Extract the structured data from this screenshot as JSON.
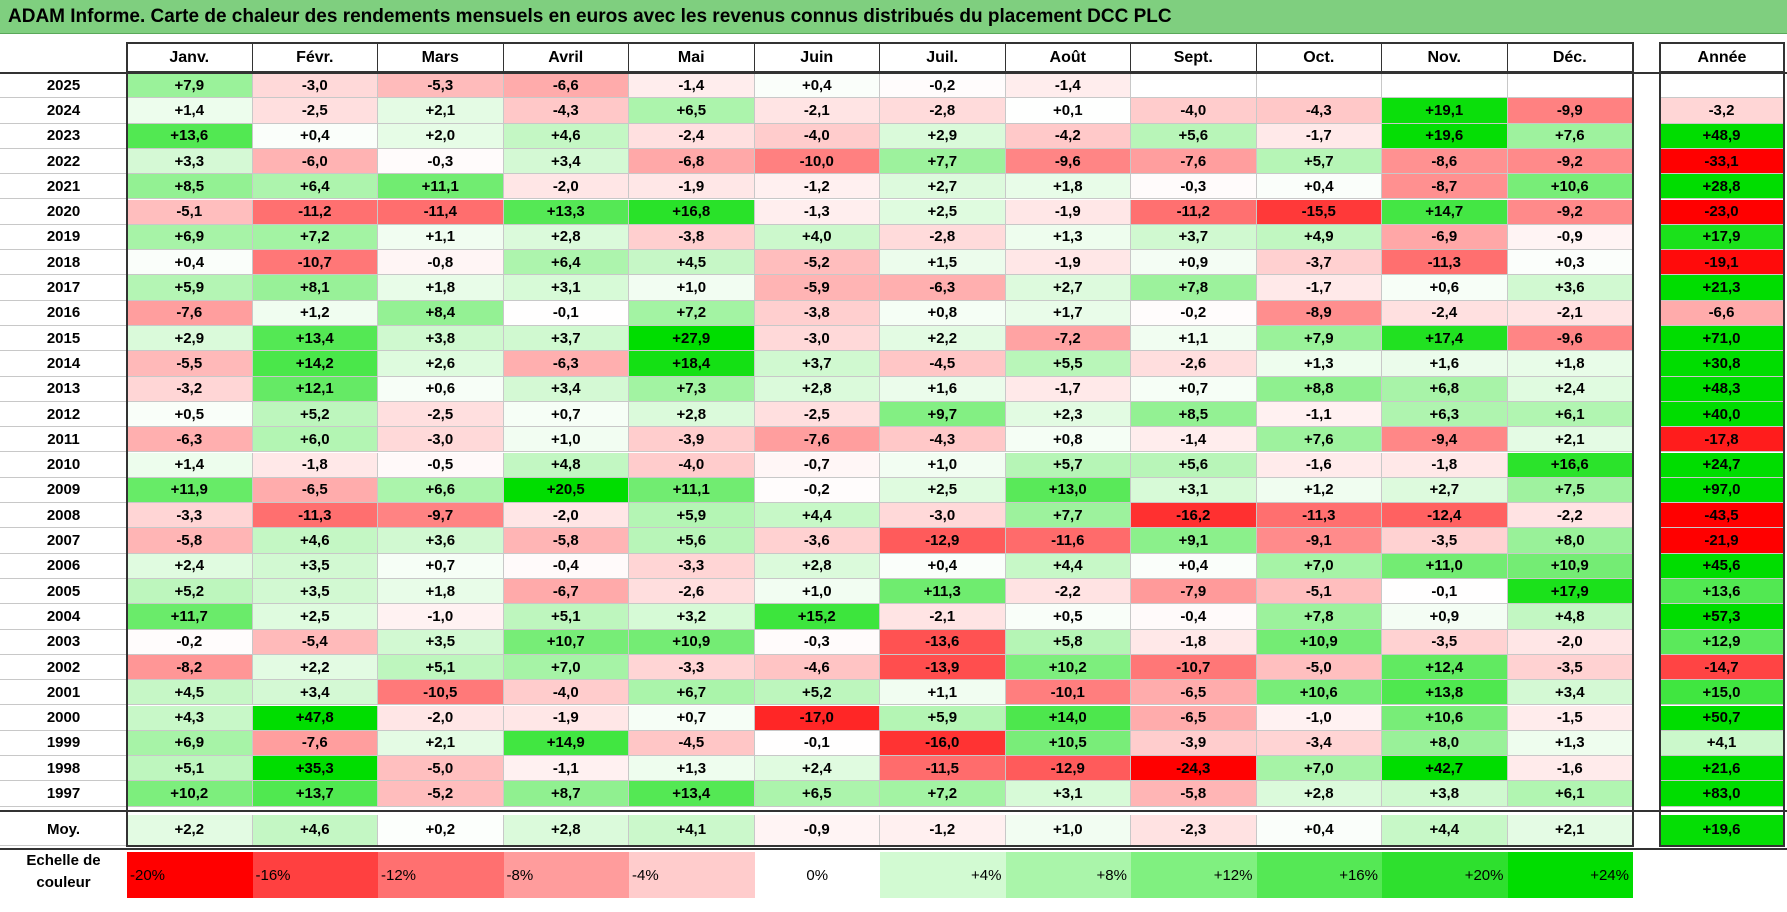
{
  "title": "ADAM Informe. Carte de chaleur des rendements mensuels en euros avec les revenus connus distribués du placement DCC PLC",
  "chart_data": {
    "type": "heatmap",
    "months": [
      "Janv.",
      "Févr.",
      "Mars",
      "Avril",
      "Mai",
      "Juin",
      "Juil.",
      "Août",
      "Sept.",
      "Oct.",
      "Nov.",
      "Déc."
    ],
    "year_header": "Année",
    "rows": [
      {
        "year": "2025",
        "values": [
          "+7,9",
          "-3,0",
          "-5,3",
          "-6,6",
          "-1,4",
          "+0,4",
          "-0,2",
          "-1,4",
          "",
          "",
          "",
          ""
        ],
        "annual": ""
      },
      {
        "year": "2024",
        "values": [
          "+1,4",
          "-2,5",
          "+2,1",
          "-4,3",
          "+6,5",
          "-2,1",
          "-2,8",
          "+0,1",
          "-4,0",
          "-4,3",
          "+19,1",
          "-9,9"
        ],
        "annual": "-3,2"
      },
      {
        "year": "2023",
        "values": [
          "+13,6",
          "+0,4",
          "+2,0",
          "+4,6",
          "-2,4",
          "-4,0",
          "+2,9",
          "-4,2",
          "+5,6",
          "-1,7",
          "+19,6",
          "+7,6"
        ],
        "annual": "+48,9"
      },
      {
        "year": "2022",
        "values": [
          "+3,3",
          "-6,0",
          "-0,3",
          "+3,4",
          "-6,8",
          "-10,0",
          "+7,7",
          "-9,6",
          "-7,6",
          "+5,7",
          "-8,6",
          "-9,2"
        ],
        "annual": "-33,1"
      },
      {
        "year": "2021",
        "values": [
          "+8,5",
          "+6,4",
          "+11,1",
          "-2,0",
          "-1,9",
          "-1,2",
          "+2,7",
          "+1,8",
          "-0,3",
          "+0,4",
          "-8,7",
          "+10,6"
        ],
        "annual": "+28,8"
      },
      {
        "year": "2020",
        "values": [
          "-5,1",
          "-11,2",
          "-11,4",
          "+13,3",
          "+16,8",
          "-1,3",
          "+2,5",
          "-1,9",
          "-11,2",
          "-15,5",
          "+14,7",
          "-9,2"
        ],
        "annual": "-23,0"
      },
      {
        "year": "2019",
        "values": [
          "+6,9",
          "+7,2",
          "+1,1",
          "+2,8",
          "-3,8",
          "+4,0",
          "-2,8",
          "+1,3",
          "+3,7",
          "+4,9",
          "-6,9",
          "-0,9"
        ],
        "annual": "+17,9"
      },
      {
        "year": "2018",
        "values": [
          "+0,4",
          "-10,7",
          "-0,8",
          "+6,4",
          "+4,5",
          "-5,2",
          "+1,5",
          "-1,9",
          "+0,9",
          "-3,7",
          "-11,3",
          "+0,3"
        ],
        "annual": "-19,1"
      },
      {
        "year": "2017",
        "values": [
          "+5,9",
          "+8,1",
          "+1,8",
          "+3,1",
          "+1,0",
          "-5,9",
          "-6,3",
          "+2,7",
          "+7,8",
          "-1,7",
          "+0,6",
          "+3,6"
        ],
        "annual": "+21,3"
      },
      {
        "year": "2016",
        "values": [
          "-7,6",
          "+1,2",
          "+8,4",
          "-0,1",
          "+7,2",
          "-3,8",
          "+0,8",
          "+1,7",
          "-0,2",
          "-8,9",
          "-2,4",
          "-2,1"
        ],
        "annual": "-6,6"
      },
      {
        "year": "2015",
        "values": [
          "+2,9",
          "+13,4",
          "+3,8",
          "+3,7",
          "+27,9",
          "-3,0",
          "+2,2",
          "-7,2",
          "+1,1",
          "+7,9",
          "+17,4",
          "-9,6"
        ],
        "annual": "+71,0"
      },
      {
        "year": "2014",
        "values": [
          "-5,5",
          "+14,2",
          "+2,6",
          "-6,3",
          "+18,4",
          "+3,7",
          "-4,5",
          "+5,5",
          "-2,6",
          "+1,3",
          "+1,6",
          "+1,8"
        ],
        "annual": "+30,8"
      },
      {
        "year": "2013",
        "values": [
          "-3,2",
          "+12,1",
          "+0,6",
          "+3,4",
          "+7,3",
          "+2,8",
          "+1,6",
          "-1,7",
          "+0,7",
          "+8,8",
          "+6,8",
          "+2,4"
        ],
        "annual": "+48,3"
      },
      {
        "year": "2012",
        "values": [
          "+0,5",
          "+5,2",
          "-2,5",
          "+0,7",
          "+2,8",
          "-2,5",
          "+9,7",
          "+2,3",
          "+8,5",
          "-1,1",
          "+6,3",
          "+6,1"
        ],
        "annual": "+40,0"
      },
      {
        "year": "2011",
        "values": [
          "-6,3",
          "+6,0",
          "-3,0",
          "+1,0",
          "-3,9",
          "-7,6",
          "-4,3",
          "+0,8",
          "-1,4",
          "+7,6",
          "-9,4",
          "+2,1"
        ],
        "annual": "-17,8"
      },
      {
        "year": "2010",
        "values": [
          "+1,4",
          "-1,8",
          "-0,5",
          "+4,8",
          "-4,0",
          "-0,7",
          "+1,0",
          "+5,7",
          "+5,6",
          "-1,6",
          "-1,8",
          "+16,6"
        ],
        "annual": "+24,7"
      },
      {
        "year": "2009",
        "values": [
          "+11,9",
          "-6,5",
          "+6,6",
          "+20,5",
          "+11,1",
          "-0,2",
          "+2,5",
          "+13,0",
          "+3,1",
          "+1,2",
          "+2,7",
          "+7,5"
        ],
        "annual": "+97,0"
      },
      {
        "year": "2008",
        "values": [
          "-3,3",
          "-11,3",
          "-9,7",
          "-2,0",
          "+5,9",
          "+4,4",
          "-3,0",
          "+7,7",
          "-16,2",
          "-11,3",
          "-12,4",
          "-2,2"
        ],
        "annual": "-43,5"
      },
      {
        "year": "2007",
        "values": [
          "-5,8",
          "+4,6",
          "+3,6",
          "-5,8",
          "+5,6",
          "-3,6",
          "-12,9",
          "-11,6",
          "+9,1",
          "-9,1",
          "-3,5",
          "+8,0"
        ],
        "annual": "-21,9"
      },
      {
        "year": "2006",
        "values": [
          "+2,4",
          "+3,5",
          "+0,7",
          "-0,4",
          "-3,3",
          "+2,8",
          "+0,4",
          "+4,4",
          "+0,4",
          "+7,0",
          "+11,0",
          "+10,9"
        ],
        "annual": "+45,6"
      },
      {
        "year": "2005",
        "values": [
          "+5,2",
          "+3,5",
          "+1,8",
          "-6,7",
          "-2,6",
          "+1,0",
          "+11,3",
          "-2,2",
          "-7,9",
          "-5,1",
          "-0,1",
          "+17,9"
        ],
        "annual": "+13,6"
      },
      {
        "year": "2004",
        "values": [
          "+11,7",
          "+2,5",
          "-1,0",
          "+5,1",
          "+3,2",
          "+15,2",
          "-2,1",
          "+0,5",
          "-0,4",
          "+7,8",
          "+0,9",
          "+4,8"
        ],
        "annual": "+57,3"
      },
      {
        "year": "2003",
        "values": [
          "-0,2",
          "-5,4",
          "+3,5",
          "+10,7",
          "+10,9",
          "-0,3",
          "-13,6",
          "+5,8",
          "-1,8",
          "+10,9",
          "-3,5",
          "-2,0"
        ],
        "annual": "+12,9"
      },
      {
        "year": "2002",
        "values": [
          "-8,2",
          "+2,2",
          "+5,1",
          "+7,0",
          "-3,3",
          "-4,6",
          "-13,9",
          "+10,2",
          "-10,7",
          "-5,0",
          "+12,4",
          "-3,5"
        ],
        "annual": "-14,7"
      },
      {
        "year": "2001",
        "values": [
          "+4,5",
          "+3,4",
          "-10,5",
          "-4,0",
          "+6,7",
          "+5,2",
          "+1,1",
          "-10,1",
          "-6,5",
          "+10,6",
          "+13,8",
          "+3,4"
        ],
        "annual": "+15,0"
      },
      {
        "year": "2000",
        "values": [
          "+4,3",
          "+47,8",
          "-2,0",
          "-1,9",
          "+0,7",
          "-17,0",
          "+5,9",
          "+14,0",
          "-6,5",
          "-1,0",
          "+10,6",
          "-1,5"
        ],
        "annual": "+50,7"
      },
      {
        "year": "1999",
        "values": [
          "+6,9",
          "-7,6",
          "+2,1",
          "+14,9",
          "-4,5",
          "-0,1",
          "-16,0",
          "+10,5",
          "-3,9",
          "-3,4",
          "+8,0",
          "+1,3"
        ],
        "annual": "+4,1"
      },
      {
        "year": "1998",
        "values": [
          "+5,1",
          "+35,3",
          "-5,0",
          "-1,1",
          "+1,3",
          "+2,4",
          "-11,5",
          "-12,9",
          "-24,3",
          "+7,0",
          "+42,7",
          "-1,6"
        ],
        "annual": "+21,6"
      },
      {
        "year": "1997",
        "values": [
          "+10,2",
          "+13,7",
          "-5,2",
          "+8,7",
          "+13,4",
          "+6,5",
          "+7,2",
          "+3,1",
          "-5,8",
          "+2,8",
          "+3,8",
          "+6,1"
        ],
        "annual": "+83,0"
      }
    ],
    "average": {
      "label": "Moy.",
      "values": [
        "+2,2",
        "+4,6",
        "+0,2",
        "+2,8",
        "+4,1",
        "-0,9",
        "-1,2",
        "+1,0",
        "-2,3",
        "+0,4",
        "+4,4",
        "+2,1"
      ],
      "annual": "+19,6"
    },
    "legend": {
      "label_line1": "Echelle de",
      "label_line2": "couleur",
      "steps": [
        {
          "label": "-20%",
          "color": "#ff0000"
        },
        {
          "label": "-16%",
          "color": "#ff4040"
        },
        {
          "label": "-12%",
          "color": "#ff7070"
        },
        {
          "label": "-8%",
          "color": "#ff9c9c"
        },
        {
          "label": "-4%",
          "color": "#ffcccc"
        },
        {
          "label": "0%",
          "color": "#ffffff"
        },
        {
          "label": "+4%",
          "color": "#d2fad2"
        },
        {
          "label": "+8%",
          "color": "#aaf5aa"
        },
        {
          "label": "+12%",
          "color": "#80f080"
        },
        {
          "label": "+16%",
          "color": "#55e855"
        },
        {
          "label": "+20%",
          "color": "#2ee02e"
        },
        {
          "label": "+24%",
          "color": "#00dd00"
        }
      ]
    }
  }
}
